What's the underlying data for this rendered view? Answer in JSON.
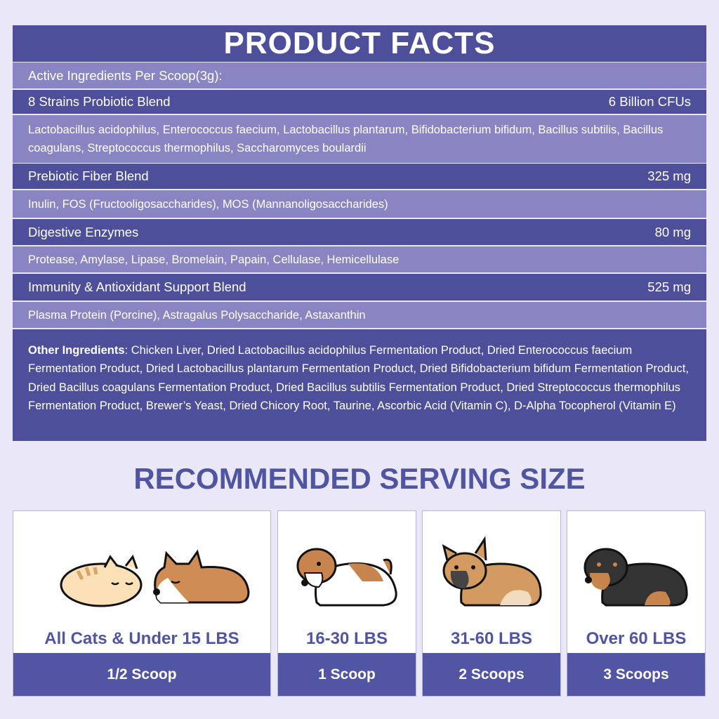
{
  "facts": {
    "title": "PRODUCT FACTS",
    "active_header": "Active Ingredients Per Scoop(3g):",
    "blends": [
      {
        "name": "8 Strains Probiotic Blend",
        "amount": "6 Billion CFUs",
        "ingredients": "Lactobacillus acidophilus, Enterococcus faecium, Lactobacillus plantarum, Bifidobacterium bifidum, Bacillus subtilis, Bacillus coagulans, Streptococcus thermophilus, Saccharomyces boulardii"
      },
      {
        "name": "Prebiotic Fiber Blend",
        "amount": "325 mg",
        "ingredients": "Inulin, FOS (Fructooligosaccharides), MOS (Mannanoligosaccharides)"
      },
      {
        "name": "Digestive Enzymes",
        "amount": "80 mg",
        "ingredients": "Protease, Amylase, Lipase, Bromelain, Papain, Cellulase, Hemicellulase"
      },
      {
        "name": "Immunity & Antioxidant Support Blend",
        "amount": "525 mg",
        "ingredients": "Plasma Protein (Porcine), Astragalus Polysaccharide, Astaxanthin"
      }
    ],
    "other_label": "Other Ingredients",
    "other_text": ": Chicken Liver, Dried Lactobacillus acidophilus Fermentation Product, Dried Enterococcus faecium Fermentation Product, Dried Lactobacillus plantarum Fermentation Product, Dried Bifidobacterium bifidum Fermentation Product, Dried Bacillus coagulans Fermentation Product, Dried Bacillus subtilis Fermentation Product, Dried Streptococcus thermophilus Fermentation Product, Brewer’s Yeast, Dried Chicory Root, Taurine, Ascorbic Acid (Vitamin C), D-Alpha Tocopherol (Vitamin E)"
  },
  "serving": {
    "title": "RECOMMENDED SERVING SIZE",
    "cards": [
      {
        "weight": "All Cats & Under 15 LBS",
        "dose": "1/2 Scoop",
        "icon": "cat-and-corgi-icon"
      },
      {
        "weight": "16-30 LBS",
        "dose": "1 Scoop",
        "icon": "beagle-icon"
      },
      {
        "weight": "31-60 LBS",
        "dose": "2 Scoops",
        "icon": "french-bulldog-icon"
      },
      {
        "weight": "Over 60 LBS",
        "dose": "3 Scoops",
        "icon": "rottweiler-icon"
      }
    ]
  },
  "colors": {
    "background": "#e9e7f8",
    "dark_band": "#4e4f9b",
    "light_band": "#8985c3",
    "heading": "#4f55a0"
  }
}
